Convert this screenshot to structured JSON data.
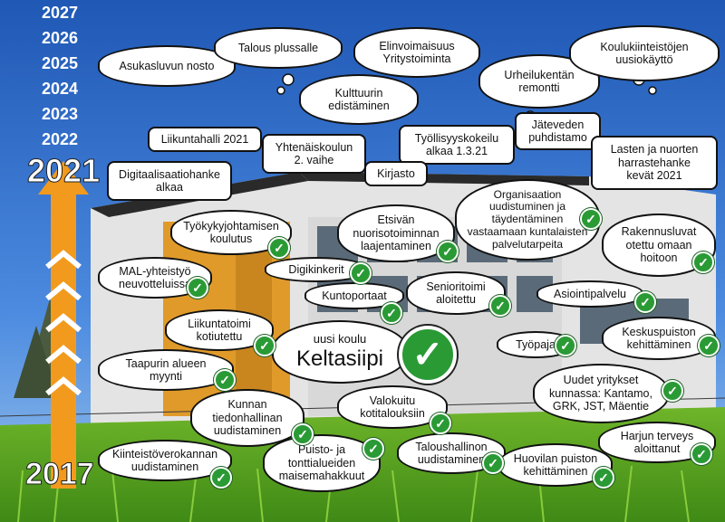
{
  "years": [
    "2027",
    "2026",
    "2025",
    "2024",
    "2023",
    "2022"
  ],
  "current_year": "2021",
  "start_year": "2017",
  "future_clouds": [
    {
      "id": "asukasluku",
      "text": "Asukasluvun nosto"
    },
    {
      "id": "talous",
      "text": "Talous plussalle"
    },
    {
      "id": "elinvoima",
      "text": "Elinvoimaisuus\nYritystoiminta"
    },
    {
      "id": "kulttuuri",
      "text": "Kulttuurin\nedistäminen"
    },
    {
      "id": "urheilukentta",
      "text": "Urheilukentän\nremontti"
    },
    {
      "id": "koulukiinteistot",
      "text": "Koulukiinteistöjen\nuusiokäyttö"
    }
  ],
  "plans": [
    {
      "id": "liikuntahalli",
      "text": "Liikuntahalli 2021"
    },
    {
      "id": "yhtenaiskoulu",
      "text": "Yhtenäiskoulun\n2. vaihe"
    },
    {
      "id": "tyollisyyskokeilu",
      "text": "Työllisyyskokeilu\nalkaa 1.3.21"
    },
    {
      "id": "jatevesi",
      "text": "Jäteveden\npuhdistamo"
    },
    {
      "id": "lastenharraste",
      "text": "Lasten ja nuorten\nharrastehanke\nkevät 2021"
    },
    {
      "id": "digitalisaatio",
      "text": "Digitaalisaatiohanke\nalkaa"
    },
    {
      "id": "kirjasto",
      "text": "Kirjasto"
    }
  ],
  "done": [
    {
      "id": "tyokyky",
      "text": "Työkykyjohtamisen\nkoulutus"
    },
    {
      "id": "etsiva",
      "text": "Etsivän\nnuorisotoiminnan\nlaajentaminen"
    },
    {
      "id": "organisaatio",
      "text": "Organisaation\nuudistuminen ja\ntäydentäminen\nvastaamaan kuntalaisten\npalvelutarpeita"
    },
    {
      "id": "rakennusluvat",
      "text": "Rakennusluvat\notettu omaan\nhoitoon"
    },
    {
      "id": "mal",
      "text": "MAL-yhteistyö\nneuvotteluissa"
    },
    {
      "id": "digikinkerit",
      "text": "Digikinkerit"
    },
    {
      "id": "kuntoportaat",
      "text": "Kuntoportaat"
    },
    {
      "id": "senioritoimi",
      "text": "Senioritoimi\naloitettu"
    },
    {
      "id": "asiointipalvelu",
      "text": "Asiointipalvelu"
    },
    {
      "id": "liikuntatoimi",
      "text": "Liikuntatoimi\nkotiutettu"
    },
    {
      "id": "keltasiipi_label",
      "text": "uusi koulu"
    },
    {
      "id": "keltasiipi",
      "text": "Keltasiipi"
    },
    {
      "id": "tyopaja",
      "text": "Työpaja"
    },
    {
      "id": "keskuspuisto",
      "text": "Keskuspuiston\nkehittäminen"
    },
    {
      "id": "taapuri",
      "text": "Taapurin alueen\nmyynti"
    },
    {
      "id": "tiedonhallinta",
      "text": "Kunnan\ntiedonhallinan\nuudistaminen"
    },
    {
      "id": "valokuitu",
      "text": "Valokuitu\nkotitalouksiin"
    },
    {
      "id": "yritykset",
      "text": "Uudet yritykset\nkunnassa: Kantamo,\nGRK, JST, Mäentie"
    },
    {
      "id": "kiinteistovero",
      "text": "Kiinteistöverokannan\nuudistaminen"
    },
    {
      "id": "puisto",
      "text": "Puisto- ja\ntonttialueiden\nmaisemahakkuut"
    },
    {
      "id": "taloushallinto",
      "text": "Taloushallinon\nuudistaminen"
    },
    {
      "id": "huovila",
      "text": "Huovilan puiston\nkehittäminen"
    },
    {
      "id": "harjun",
      "text": "Harjun terveys\naloittanut"
    }
  ]
}
